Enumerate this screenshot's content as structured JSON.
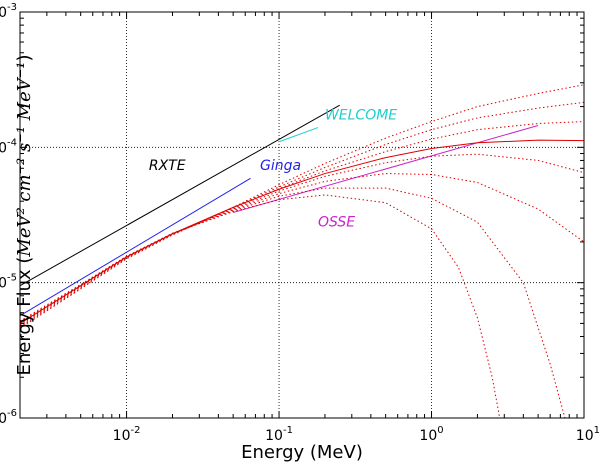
{
  "chart_data": {
    "type": "line",
    "xlabel": "Energy (MeV)",
    "ylabel_prefix": "Energy Flux (",
    "ylabel_units": "MeV² cm⁻² s⁻¹ MeV⁻¹",
    "ylabel_suffix": ")",
    "xscale": "log",
    "yscale": "log",
    "xlim": [
      0.002,
      10
    ],
    "ylim": [
      1e-06,
      0.001
    ],
    "grid": "major",
    "x_tick_labels": [
      {
        "base": "10",
        "exp": "-2",
        "value": 0.01
      },
      {
        "base": "10",
        "exp": "-1",
        "value": 0.1
      },
      {
        "base": "10",
        "exp": "0",
        "value": 1
      },
      {
        "base": "10",
        "exp": "1",
        "value": 10
      }
    ],
    "y_tick_labels": [
      {
        "base": "10",
        "exp": "-6",
        "value": 1e-06
      },
      {
        "base": "10",
        "exp": "-5",
        "value": 1e-05
      },
      {
        "base": "10",
        "exp": "-4",
        "value": 0.0001
      },
      {
        "base": "10",
        "exp": "-3",
        "value": 0.001
      }
    ],
    "series": [
      {
        "name": "RXTE",
        "color": "#000000",
        "style": "solid",
        "points": [
          [
            0.002,
            9.5e-06
          ],
          [
            0.25,
            0.000205
          ]
        ]
      },
      {
        "name": "Ginga",
        "color": "#2222ee",
        "style": "solid",
        "points": [
          [
            0.002,
            5.7e-06
          ],
          [
            0.065,
            5.9e-05
          ]
        ]
      },
      {
        "name": "WELCOME",
        "color": "#22cccc",
        "style": "solid",
        "points": [
          [
            0.1,
            0.00011
          ],
          [
            0.18,
            0.00014
          ]
        ]
      },
      {
        "name": "OSSE",
        "color": "#cc22cc",
        "style": "solid",
        "points": [
          [
            0.05,
            3.3e-05
          ],
          [
            5,
            0.000145
          ]
        ]
      },
      {
        "color": "#dd0000",
        "style": "solid",
        "points": [
          [
            0.002,
            5e-06
          ],
          [
            0.005,
            9.5e-06
          ],
          [
            0.01,
            1.55e-05
          ],
          [
            0.02,
            2.3e-05
          ],
          [
            0.05,
            3.6e-05
          ],
          [
            0.1,
            4.9e-05
          ],
          [
            0.2,
            6.4e-05
          ],
          [
            0.5,
            8.4e-05
          ],
          [
            1,
            9.8e-05
          ],
          [
            2,
            0.000108
          ],
          [
            5,
            0.000113
          ],
          [
            10,
            0.000112
          ]
        ]
      },
      {
        "color": "#dd0000",
        "style": "dotted",
        "points": [
          [
            0.002,
            4.6e-06
          ],
          [
            0.005,
            9e-06
          ],
          [
            0.01,
            1.5e-05
          ],
          [
            0.02,
            2.25e-05
          ],
          [
            0.05,
            3.6e-05
          ],
          [
            0.1,
            5.3e-05
          ],
          [
            0.2,
            7.6e-05
          ],
          [
            0.5,
            0.000117
          ],
          [
            1,
            0.000155
          ],
          [
            2,
            0.0002
          ],
          [
            5,
            0.00025
          ],
          [
            10,
            0.00029
          ]
        ]
      },
      {
        "color": "#dd0000",
        "style": "dotted",
        "points": [
          [
            0.002,
            4.7e-06
          ],
          [
            0.005,
            9.1e-06
          ],
          [
            0.01,
            1.52e-05
          ],
          [
            0.02,
            2.27e-05
          ],
          [
            0.05,
            3.6e-05
          ],
          [
            0.1,
            5.1e-05
          ],
          [
            0.2,
            7.1e-05
          ],
          [
            0.5,
            0.000105
          ],
          [
            1,
            0.000135
          ],
          [
            2,
            0.000165
          ],
          [
            5,
            0.000195
          ],
          [
            10,
            0.000215
          ]
        ]
      },
      {
        "color": "#dd0000",
        "style": "dotted",
        "points": [
          [
            0.002,
            4.8e-06
          ],
          [
            0.005,
            9.3e-06
          ],
          [
            0.01,
            1.53e-05
          ],
          [
            0.02,
            2.28e-05
          ],
          [
            0.05,
            3.55e-05
          ],
          [
            0.1,
            4.95e-05
          ],
          [
            0.2,
            6.7e-05
          ],
          [
            0.5,
            9.3e-05
          ],
          [
            1,
            0.000115
          ],
          [
            2,
            0.000135
          ],
          [
            5,
            0.00015
          ],
          [
            10,
            0.000155
          ]
        ]
      },
      {
        "color": "#dd0000",
        "style": "dotted",
        "points": [
          [
            0.002,
            4.9e-06
          ],
          [
            0.005,
            9.4e-06
          ],
          [
            0.01,
            1.54e-05
          ],
          [
            0.02,
            2.29e-05
          ],
          [
            0.05,
            3.5e-05
          ],
          [
            0.1,
            4.75e-05
          ],
          [
            0.2,
            6.1e-05
          ],
          [
            0.5,
            7.7e-05
          ],
          [
            1,
            8.6e-05
          ],
          [
            2,
            8.9e-05
          ],
          [
            5,
            8e-05
          ],
          [
            10,
            6.5e-05
          ]
        ]
      },
      {
        "color": "#dd0000",
        "style": "dotted",
        "points": [
          [
            0.002,
            5e-06
          ],
          [
            0.005,
            9.5e-06
          ],
          [
            0.01,
            1.55e-05
          ],
          [
            0.02,
            2.3e-05
          ],
          [
            0.05,
            3.45e-05
          ],
          [
            0.1,
            4.55e-05
          ],
          [
            0.2,
            5.6e-05
          ],
          [
            0.5,
            6.4e-05
          ],
          [
            1,
            6.3e-05
          ],
          [
            2,
            5.5e-05
          ],
          [
            5,
            3.5e-05
          ],
          [
            10,
            2e-05
          ]
        ]
      },
      {
        "color": "#dd0000",
        "style": "dotted",
        "points": [
          [
            0.002,
            5.1e-06
          ],
          [
            0.005,
            9.6e-06
          ],
          [
            0.01,
            1.56e-05
          ],
          [
            0.02,
            2.31e-05
          ],
          [
            0.05,
            3.4e-05
          ],
          [
            0.1,
            4.35e-05
          ],
          [
            0.2,
            5e-05
          ],
          [
            0.5,
            5e-05
          ],
          [
            1,
            4.2e-05
          ],
          [
            2,
            2.8e-05
          ],
          [
            4,
            1e-05
          ],
          [
            6,
            2.5e-06
          ],
          [
            7.5,
            1e-06
          ]
        ]
      },
      {
        "color": "#dd0000",
        "style": "dotted",
        "points": [
          [
            0.002,
            5.2e-06
          ],
          [
            0.005,
            9.7e-06
          ],
          [
            0.01,
            1.57e-05
          ],
          [
            0.02,
            2.32e-05
          ],
          [
            0.05,
            3.35e-05
          ],
          [
            0.1,
            4.1e-05
          ],
          [
            0.2,
            4.45e-05
          ],
          [
            0.5,
            3.9e-05
          ],
          [
            1,
            2.5e-05
          ],
          [
            1.5,
            1.3e-05
          ],
          [
            2,
            5.5e-06
          ],
          [
            2.5,
            2e-06
          ],
          [
            2.8,
            1e-06
          ]
        ]
      }
    ],
    "annotations": [
      {
        "text": "RXTE",
        "color": "#000000",
        "x": 0.014,
        "y": 6.8e-05
      },
      {
        "text": "Ginga",
        "color": "#2222ee",
        "x": 0.075,
        "y": 6.8e-05
      },
      {
        "text": "WELCOME",
        "color": "#22cccc",
        "x": 0.2,
        "y": 0.00016
      },
      {
        "text": "OSSE",
        "color": "#cc22cc",
        "x": 0.18,
        "y": 2.6e-05
      }
    ]
  }
}
